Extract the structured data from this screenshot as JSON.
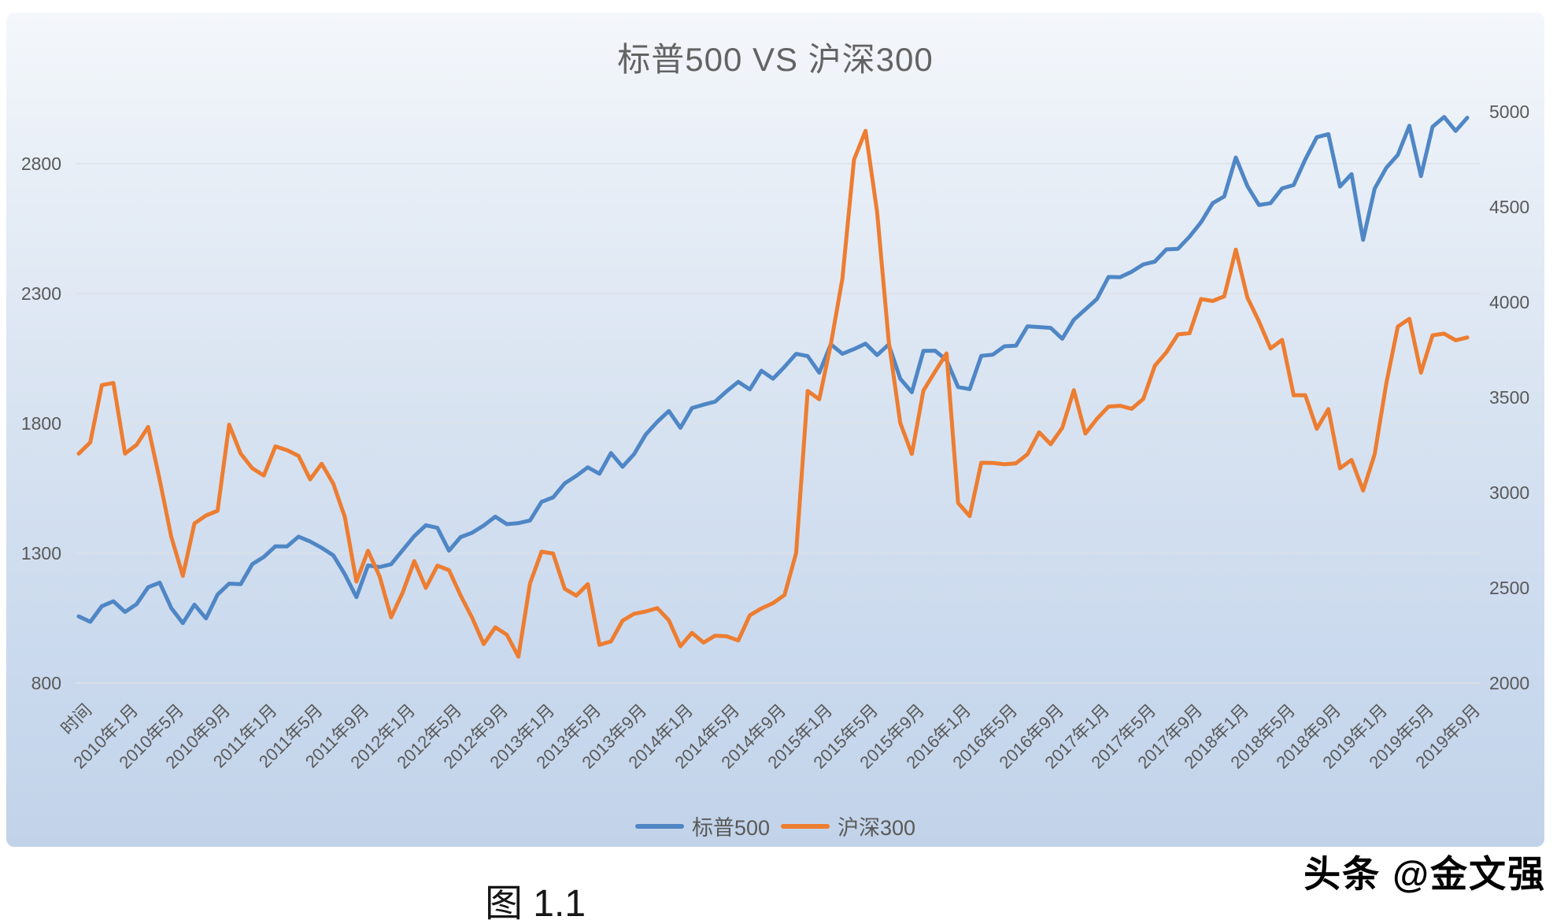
{
  "chart": {
    "title": "标普500 VS 沪深300"
  },
  "caption": "图 1.1",
  "watermark": "头条 @金文强",
  "colors": {
    "sp500": "#4F86C5",
    "csi300": "#ED7D31",
    "axis_text": "#595959",
    "title_text": "#636363",
    "gridline": "#dde1e7"
  },
  "legend": [
    {
      "label": "标普500",
      "color": "#4F86C5"
    },
    {
      "label": "沪深300",
      "color": "#ED7D31"
    }
  ],
  "chart_data": {
    "type": "line",
    "title": "标普500 VS 沪深300",
    "frequency": "monthly",
    "x_range": "2009年9月 - 2019年9月",
    "tick_label_interval": 4,
    "x_tick_labels": [
      "时间",
      "2010年1月",
      "2010年5月",
      "2010年9月",
      "2011年1月",
      "2011年5月",
      "2011年9月",
      "2012年1月",
      "2012年5月",
      "2012年9月",
      "2013年1月",
      "2013年5月",
      "2013年9月",
      "2014年1月",
      "2014年5月",
      "2014年9月",
      "2015年1月",
      "2015年5月",
      "2015年9月",
      "2016年1月",
      "2016年5月",
      "2016年9月",
      "2017年1月",
      "2017年5月",
      "2017年9月",
      "2018年1月",
      "2018年5月",
      "2018年9月",
      "2019年1月",
      "2019年5月",
      "2019年9月"
    ],
    "left_axis": {
      "label": "标普500",
      "min": 800,
      "max": 3000,
      "ticks": [
        800,
        1300,
        1800,
        2300,
        2800
      ]
    },
    "right_axis": {
      "label": "沪深300",
      "min": 2000,
      "max": 5000,
      "ticks": [
        2000,
        2500,
        3000,
        3500,
        4000,
        4500,
        5000
      ]
    },
    "gridlines": "horizontal, primary (left) axis only",
    "legend_position": "bottom",
    "series": [
      {
        "name": "标普500",
        "axis": "left",
        "color": "#4F86C5",
        "values": [
          1057,
          1036,
          1096,
          1115,
          1074,
          1104,
          1169,
          1187,
          1089,
          1031,
          1102,
          1049,
          1141,
          1183,
          1181,
          1258,
          1286,
          1327,
          1326,
          1364,
          1345,
          1321,
          1292,
          1219,
          1131,
          1253,
          1247,
          1258,
          1312,
          1366,
          1408,
          1398,
          1310,
          1362,
          1379,
          1407,
          1441,
          1412,
          1416,
          1426,
          1498,
          1515,
          1569,
          1598,
          1631,
          1606,
          1686,
          1633,
          1682,
          1757,
          1806,
          1848,
          1783,
          1859,
          1872,
          1884,
          1924,
          1960,
          1931,
          2003,
          1972,
          2018,
          2068,
          2059,
          1995,
          2105,
          2068,
          2086,
          2107,
          2063,
          2104,
          1972,
          1920,
          2079,
          2080,
          2044,
          1940,
          1932,
          2060,
          2065,
          2097,
          2099,
          2174,
          2171,
          2168,
          2126,
          2199,
          2239,
          2279,
          2364,
          2363,
          2384,
          2412,
          2423,
          2470,
          2472,
          2519,
          2575,
          2648,
          2674,
          2824,
          2714,
          2641,
          2648,
          2705,
          2718,
          2816,
          2902,
          2914,
          2712,
          2760,
          2507,
          2704,
          2784,
          2834,
          2946,
          2752,
          2942,
          2980,
          2926,
          2977
        ]
      },
      {
        "name": "沪深300",
        "axis": "right",
        "color": "#ED7D31",
        "values": [
          3205,
          3264,
          3565,
          3576,
          3205,
          3251,
          3345,
          3067,
          2768,
          2563,
          2838,
          2880,
          2905,
          3357,
          3205,
          3128,
          3090,
          3243,
          3223,
          3193,
          3070,
          3152,
          3047,
          2872,
          2533,
          2695,
          2561,
          2346,
          2476,
          2641,
          2500,
          2617,
          2593,
          2461,
          2343,
          2205,
          2293,
          2254,
          2139,
          2523,
          2690,
          2680,
          2495,
          2459,
          2520,
          2201,
          2219,
          2328,
          2364,
          2376,
          2394,
          2330,
          2193,
          2264,
          2213,
          2249,
          2246,
          2224,
          2356,
          2392,
          2420,
          2463,
          2683,
          3534,
          3490,
          3779,
          4124,
          4748,
          4900,
          4473,
          3797,
          3366,
          3203,
          3536,
          3635,
          3731,
          2946,
          2877,
          3157,
          3156,
          3149,
          3154,
          3202,
          3317,
          3254,
          3340,
          3538,
          3310,
          3388,
          3452,
          3456,
          3440,
          3492,
          3666,
          3737,
          3831,
          3837,
          4017,
          4006,
          4031,
          4276,
          4024,
          3899,
          3757,
          3802,
          3511,
          3512,
          3335,
          3439,
          3128,
          3172,
          3011,
          3202,
          3572,
          3872,
          3913,
          3630,
          3826,
          3835,
          3800,
          3815
        ]
      }
    ]
  }
}
